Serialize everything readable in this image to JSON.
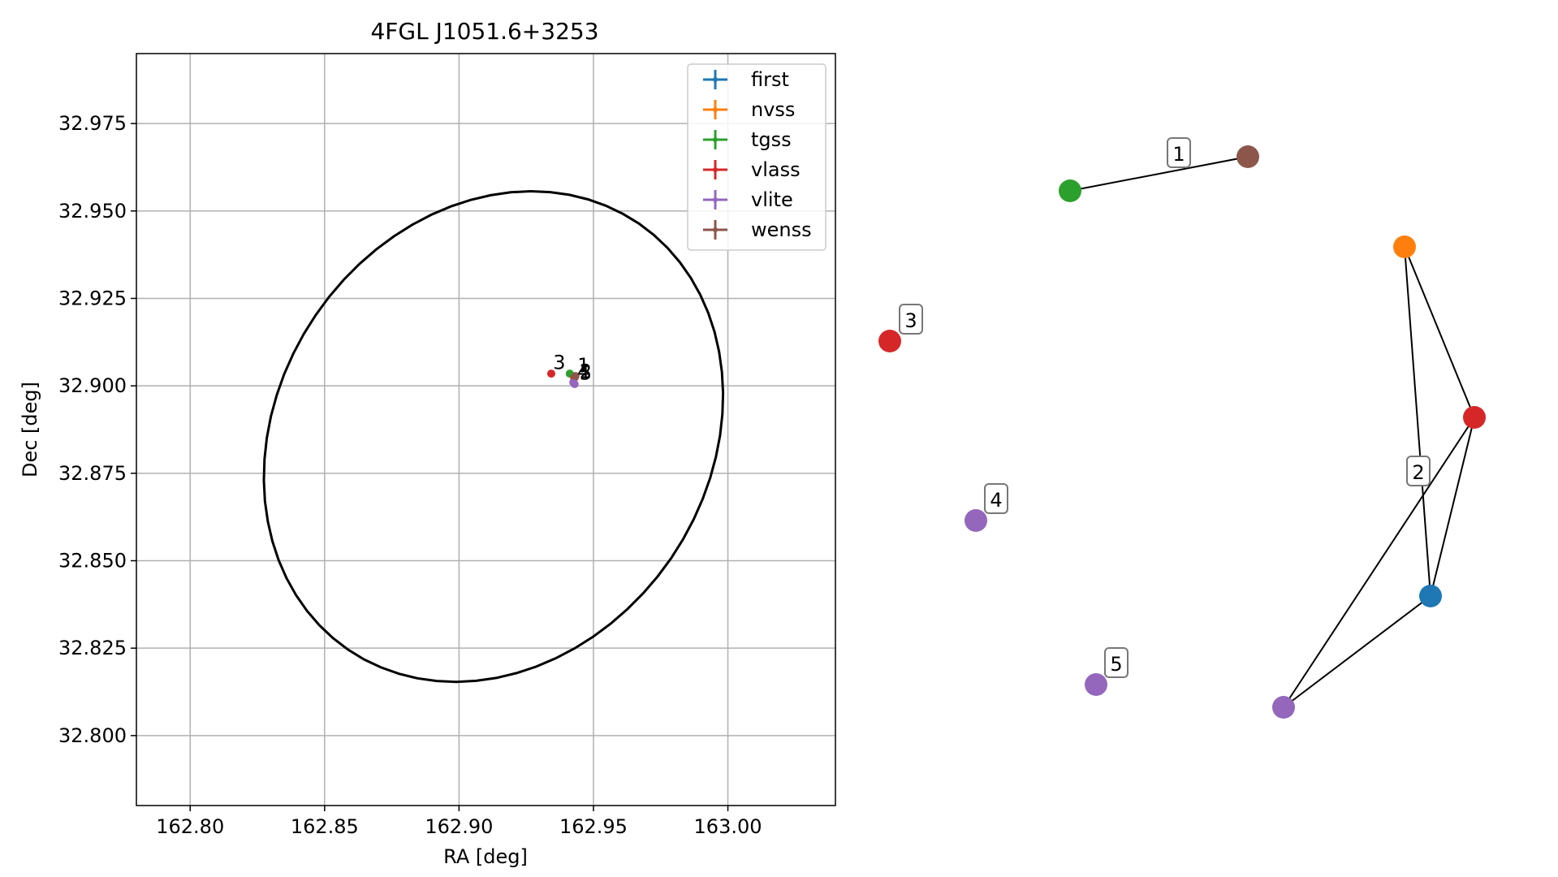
{
  "chart_data": [
    {
      "type": "scatter",
      "title": "4FGL J1051.6+3253",
      "xlabel": "RA [deg]",
      "ylabel": "Dec [deg]",
      "xlim": [
        162.78,
        163.04
      ],
      "ylim": [
        32.78,
        32.995
      ],
      "xticks": [
        "162.80",
        "162.85",
        "162.90",
        "162.95",
        "163.00"
      ],
      "xtick_values": [
        162.8,
        162.85,
        162.9,
        162.95,
        163.0
      ],
      "yticks": [
        "32.800",
        "32.825",
        "32.850",
        "32.875",
        "32.900",
        "32.925",
        "32.950",
        "32.975"
      ],
      "ytick_values": [
        32.8,
        32.825,
        32.85,
        32.875,
        32.9,
        32.925,
        32.95,
        32.975
      ],
      "grid": true,
      "legend_position": "top-right",
      "series": [
        {
          "name": "first",
          "color": "#1f77b4",
          "points": [
            [
              162.9428,
              32.9022
            ]
          ]
        },
        {
          "name": "nvss",
          "color": "#ff7f0e",
          "points": [
            [
              162.9427,
              32.9026
            ]
          ]
        },
        {
          "name": "tgss",
          "color": "#2ca02c",
          "points": [
            [
              162.9412,
              32.9035
            ]
          ]
        },
        {
          "name": "vlass",
          "color": "#d62728",
          "points": [
            [
              162.9343,
              32.9035
            ],
            [
              162.943,
              32.9024
            ]
          ]
        },
        {
          "name": "vlite",
          "color": "#9467bd",
          "points": [
            [
              162.943,
              32.9005
            ],
            [
              162.9425,
              32.901
            ]
          ]
        },
        {
          "name": "wenss",
          "color": "#8c564b",
          "points": [
            [
              162.9433,
              32.9028
            ]
          ]
        }
      ],
      "point_labels": [
        {
          "text": "3",
          "x": 162.935,
          "y": 32.9048
        },
        {
          "text": "1",
          "x": 162.944,
          "y": 32.904
        },
        {
          "text": "2",
          "x": 162.9448,
          "y": 32.9022
        },
        {
          "text": "4",
          "x": 162.944,
          "y": 32.9022
        },
        {
          "text": "5",
          "x": 162.9448,
          "y": 32.9018
        }
      ],
      "ellipse": {
        "center": [
          162.9128,
          32.8855
        ],
        "semi_major": 0.0875,
        "semi_minor": 0.0675,
        "angle_deg": 20
      }
    },
    {
      "type": "network",
      "nodes": [
        {
          "id": "tgss",
          "color": "#2ca02c"
        },
        {
          "id": "wenss",
          "color": "#8c564b"
        },
        {
          "id": "nvss",
          "color": "#ff7f0e"
        },
        {
          "id": "vlass3",
          "color": "#d62728"
        },
        {
          "id": "vlass2",
          "color": "#d62728"
        },
        {
          "id": "vlite4",
          "color": "#9467bd"
        },
        {
          "id": "first",
          "color": "#1f77b4"
        },
        {
          "id": "vlite5",
          "color": "#9467bd"
        },
        {
          "id": "vlite2",
          "color": "#9467bd"
        }
      ],
      "edges": [
        [
          "tgss",
          "wenss"
        ],
        [
          "nvss",
          "vlass2"
        ],
        [
          "nvss",
          "first"
        ],
        [
          "vlass2",
          "first"
        ],
        [
          "vlass2",
          "vlite2"
        ],
        [
          "first",
          "vlite2"
        ]
      ],
      "group_labels": [
        {
          "text": "1"
        },
        {
          "text": "2"
        },
        {
          "text": "3"
        },
        {
          "text": "4"
        },
        {
          "text": "5"
        }
      ]
    }
  ]
}
